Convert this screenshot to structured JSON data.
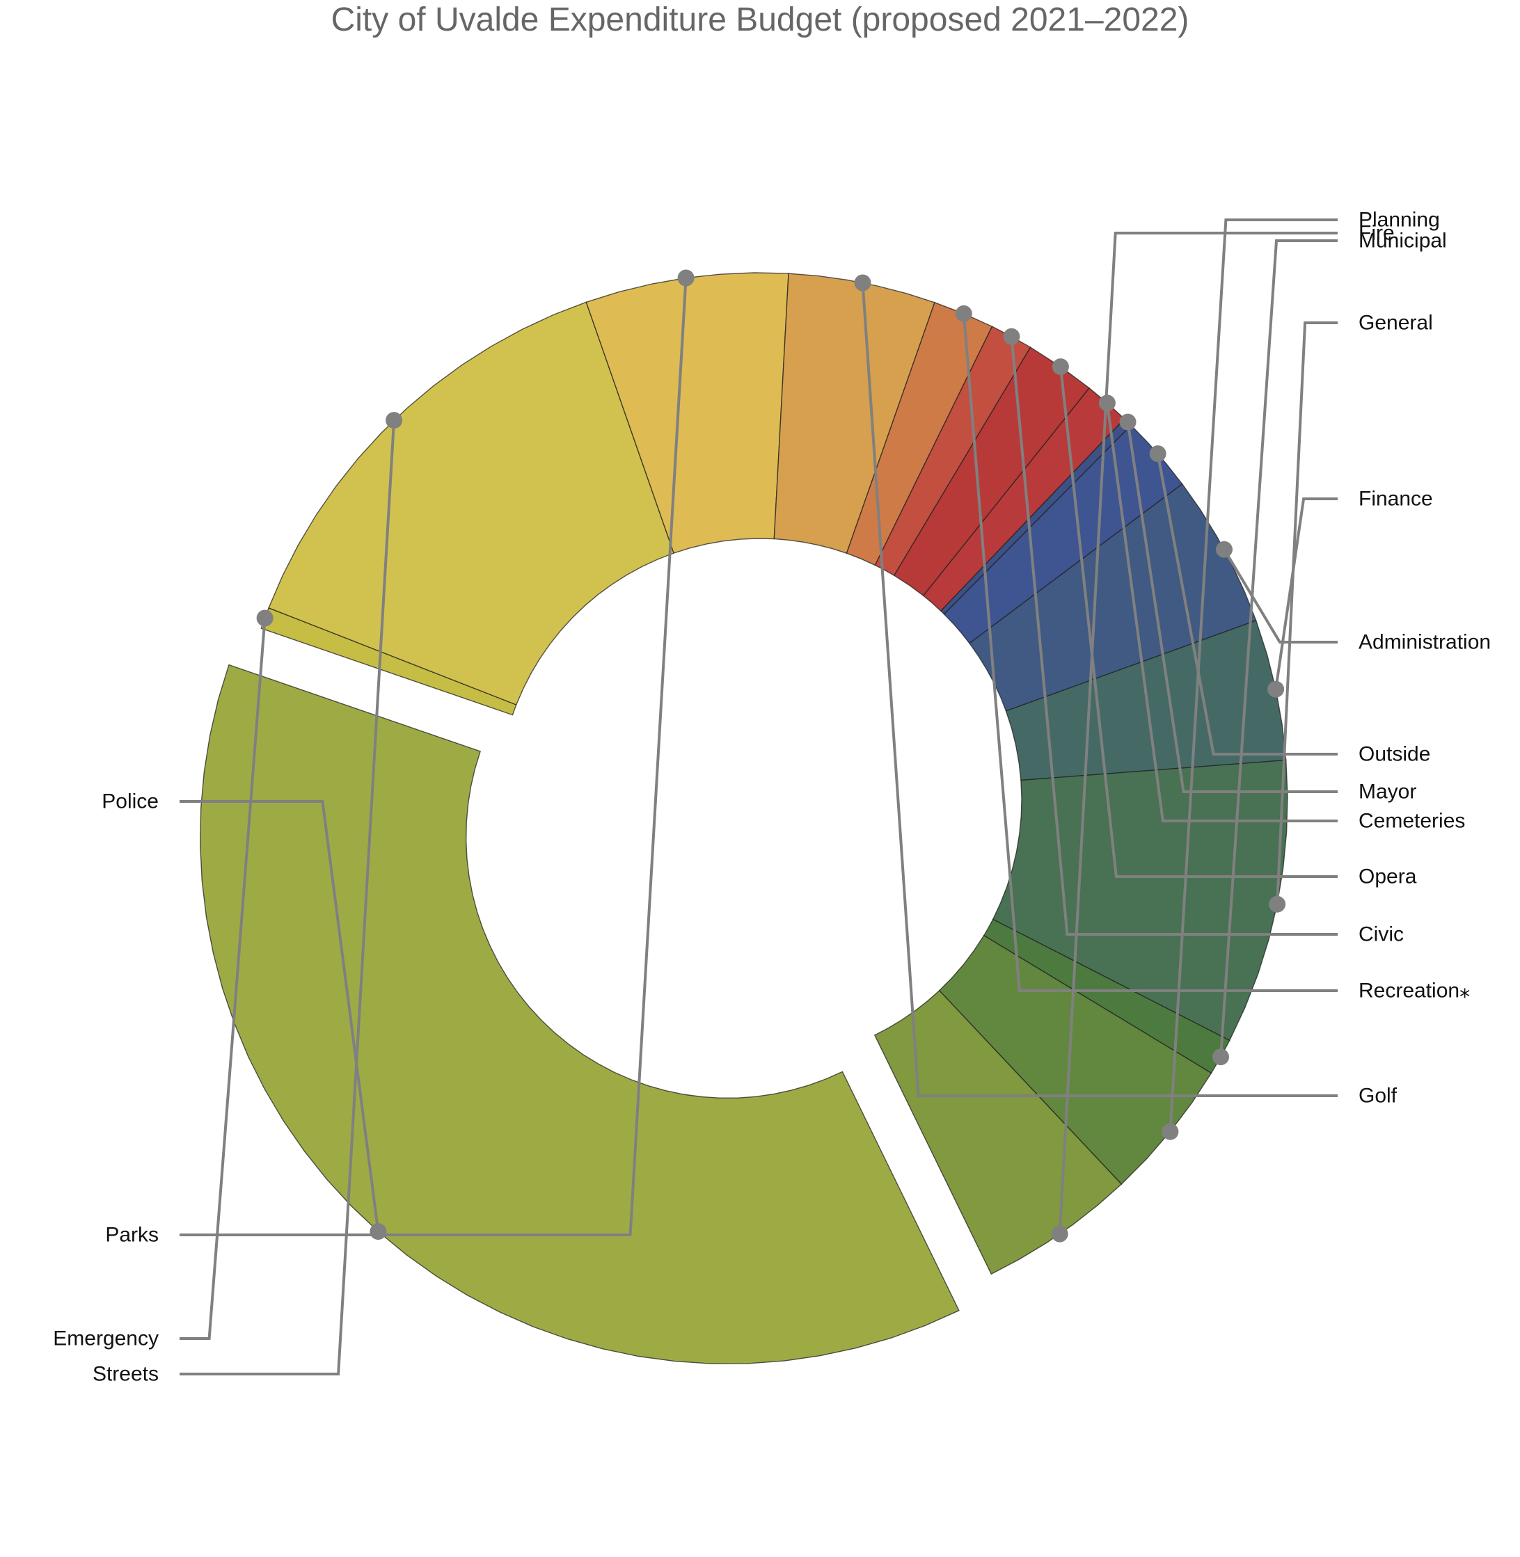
{
  "chart_data": {
    "type": "pie",
    "donut": true,
    "title": "City of Uvalde Expenditure Budget (proposed 2021–2022)",
    "exploded": "Police",
    "slices": [
      {
        "label": "Police",
        "value": 39.9,
        "color": "#9eab45"
      },
      {
        "label": "Emergency",
        "value": 0.7,
        "color": "#c6be44"
      },
      {
        "label": "Streets",
        "value": 14.6,
        "color": "#d1c24f"
      },
      {
        "label": "Parks",
        "value": 6.6,
        "color": "#dfbb54"
      },
      {
        "label": "Golf",
        "value": 4.8,
        "color": "#d6a04f"
      },
      {
        "label": "Recreation⁎",
        "value": 2.0,
        "color": "#cf7b47"
      },
      {
        "label": "Civic",
        "value": 1.4,
        "color": "#c34f40"
      },
      {
        "label": "Opera",
        "value": 2.3,
        "color": "#b73a39"
      },
      {
        "label": "Cemeteries",
        "value": 1.5,
        "color": "#b93a3a"
      },
      {
        "label": "Mayor",
        "value": 0.3,
        "color": "#3d5187"
      },
      {
        "label": "Outside",
        "value": 2.5,
        "color": "#3e5592"
      },
      {
        "label": "Administration",
        "value": 5.0,
        "color": "#405a83"
      },
      {
        "label": "Finance",
        "value": 4.6,
        "color": "#456a66"
      },
      {
        "label": "General",
        "value": 9.3,
        "color": "#487253"
      },
      {
        "label": "Municipal",
        "value": 1.2,
        "color": "#4d7a3f"
      },
      {
        "label": "Planning",
        "value": 4.6,
        "color": "#62873f"
      },
      {
        "label": "Fire",
        "value": 5.1,
        "color": "#81993f"
      }
    ]
  }
}
